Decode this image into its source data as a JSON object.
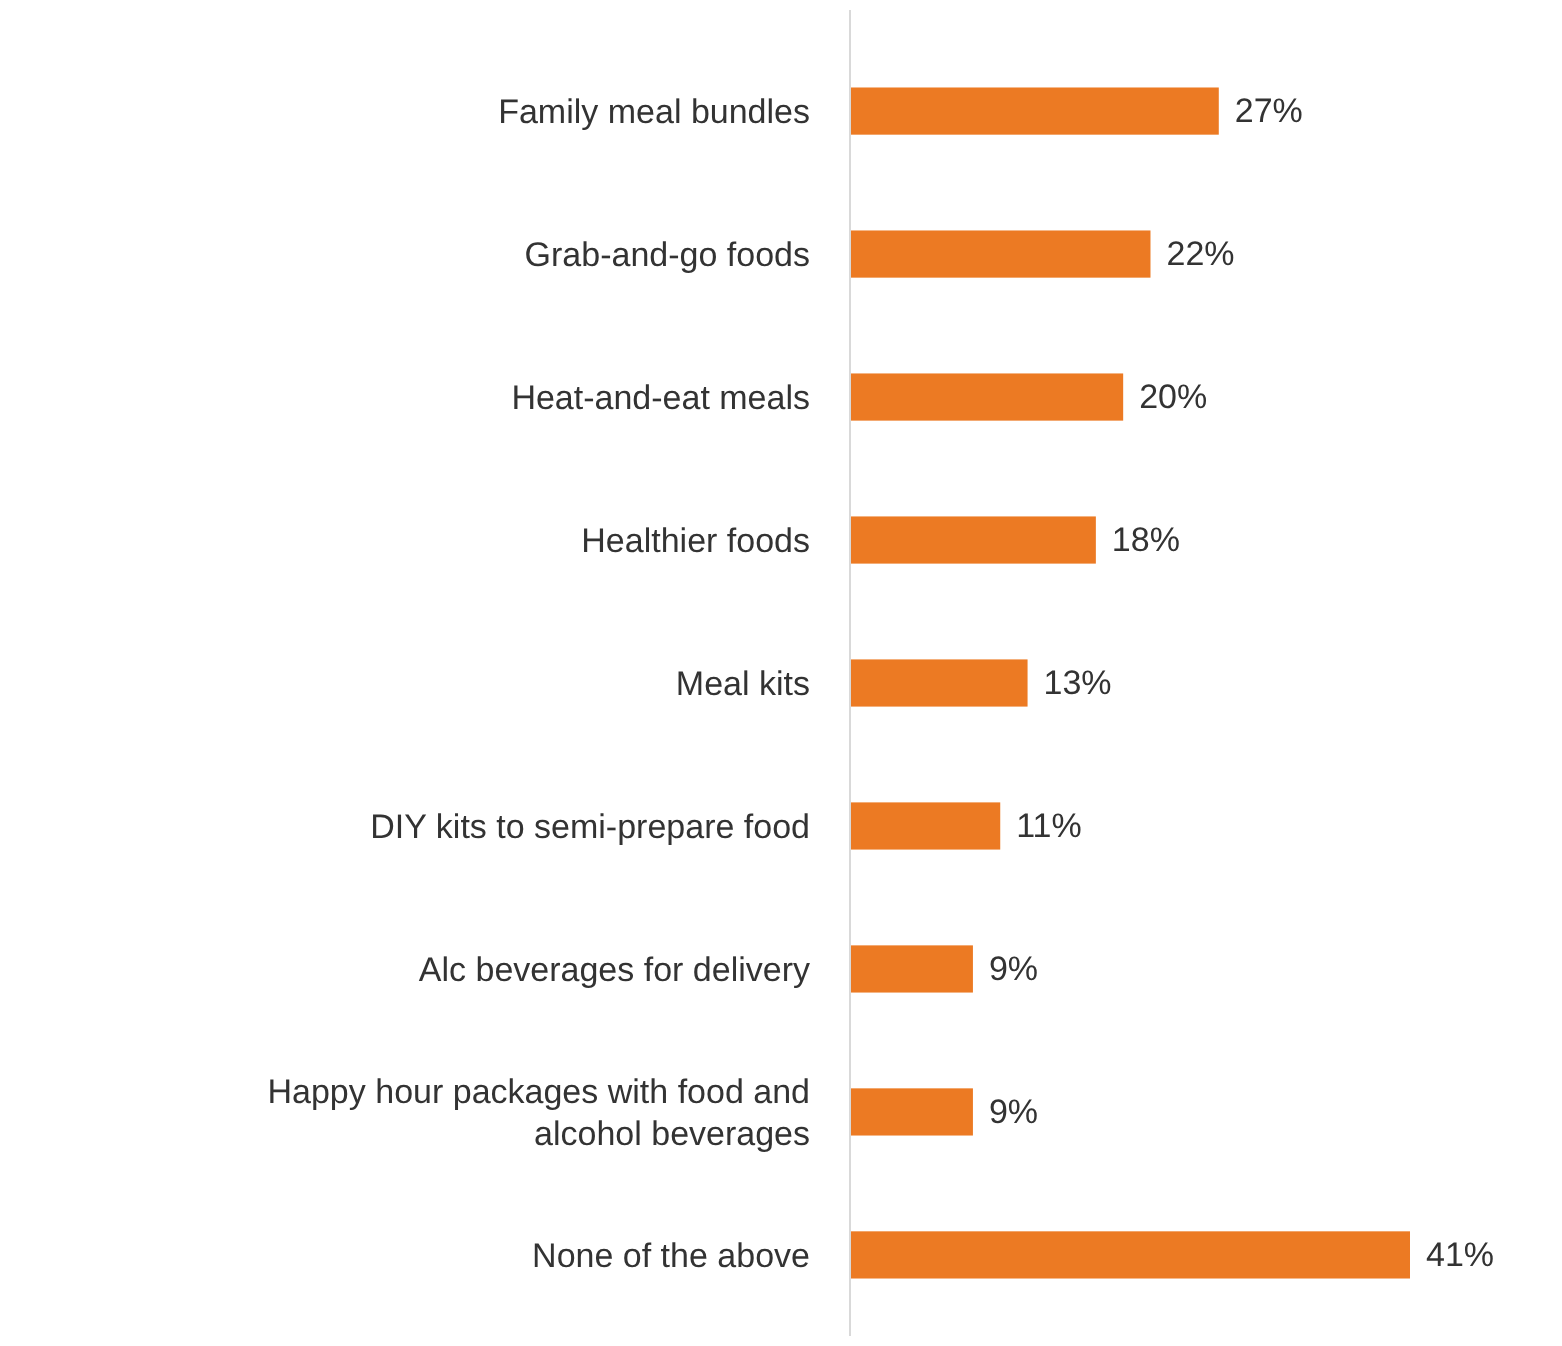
{
  "chart_data": {
    "type": "bar",
    "orientation": "horizontal",
    "categories": [
      "Family meal bundles",
      "Grab-and-go foods",
      "Heat-and-eat meals",
      "Healthier foods",
      "Meal kits",
      "DIY kits to semi-prepare food",
      "Alc beverages for delivery",
      "Happy hour packages with food and alcohol beverages",
      "None of the above"
    ],
    "values": [
      27,
      22,
      20,
      18,
      13,
      11,
      9,
      9,
      41
    ],
    "value_labels": [
      "27%",
      "22%",
      "20%",
      "18%",
      "13%",
      "11%",
      "9%",
      "9%",
      "41%"
    ],
    "color": "#ec7a23"
  }
}
